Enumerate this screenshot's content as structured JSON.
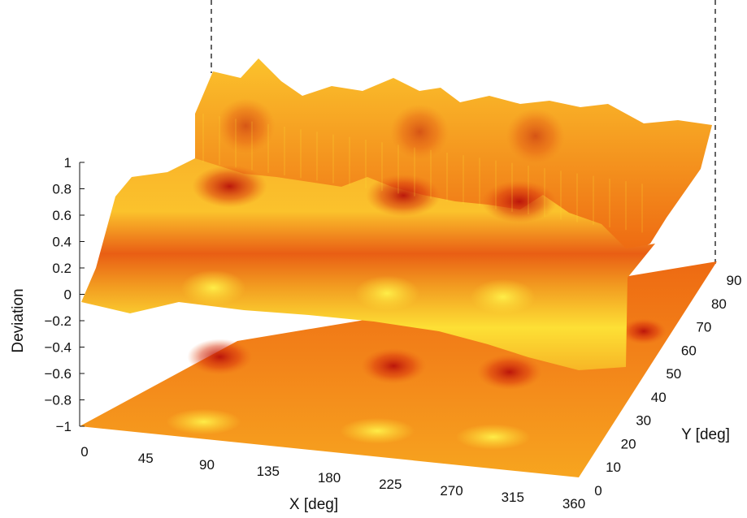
{
  "chart_data": {
    "type": "surface",
    "title": "",
    "xlabel": "X [deg]",
    "ylabel": "Y [deg]",
    "zlabel": "Deviation",
    "x_ticks": [
      "0",
      "45",
      "90",
      "135",
      "180",
      "225",
      "270",
      "315",
      "360"
    ],
    "y_ticks": [
      "0",
      "10",
      "20",
      "30",
      "40",
      "50",
      "60",
      "70",
      "80",
      "90"
    ],
    "z_ticks": [
      "−1",
      "−0.8",
      "−0.6",
      "−0.4",
      "−0.2",
      "0",
      "0.2",
      "0.4",
      "0.6",
      "0.8",
      "1"
    ],
    "xlim": [
      0,
      360
    ],
    "ylim": [
      0,
      90
    ],
    "zlim": [
      -1,
      1
    ],
    "colormap": [
      "#c81e0a",
      "#ee6a12",
      "#f7a21e",
      "#fde33a"
    ],
    "surface_profile": {
      "y": [
        0,
        10,
        20,
        30,
        40,
        50,
        60,
        70,
        80,
        90
      ],
      "deviation": [
        0.0,
        0.02,
        0.05,
        0.12,
        0.3,
        0.55,
        0.75,
        0.9,
        0.95,
        0.97
      ]
    },
    "dark_peaks_x": [
      90,
      225,
      315
    ],
    "floor_projection": "contour map of deviation at z = -1"
  }
}
